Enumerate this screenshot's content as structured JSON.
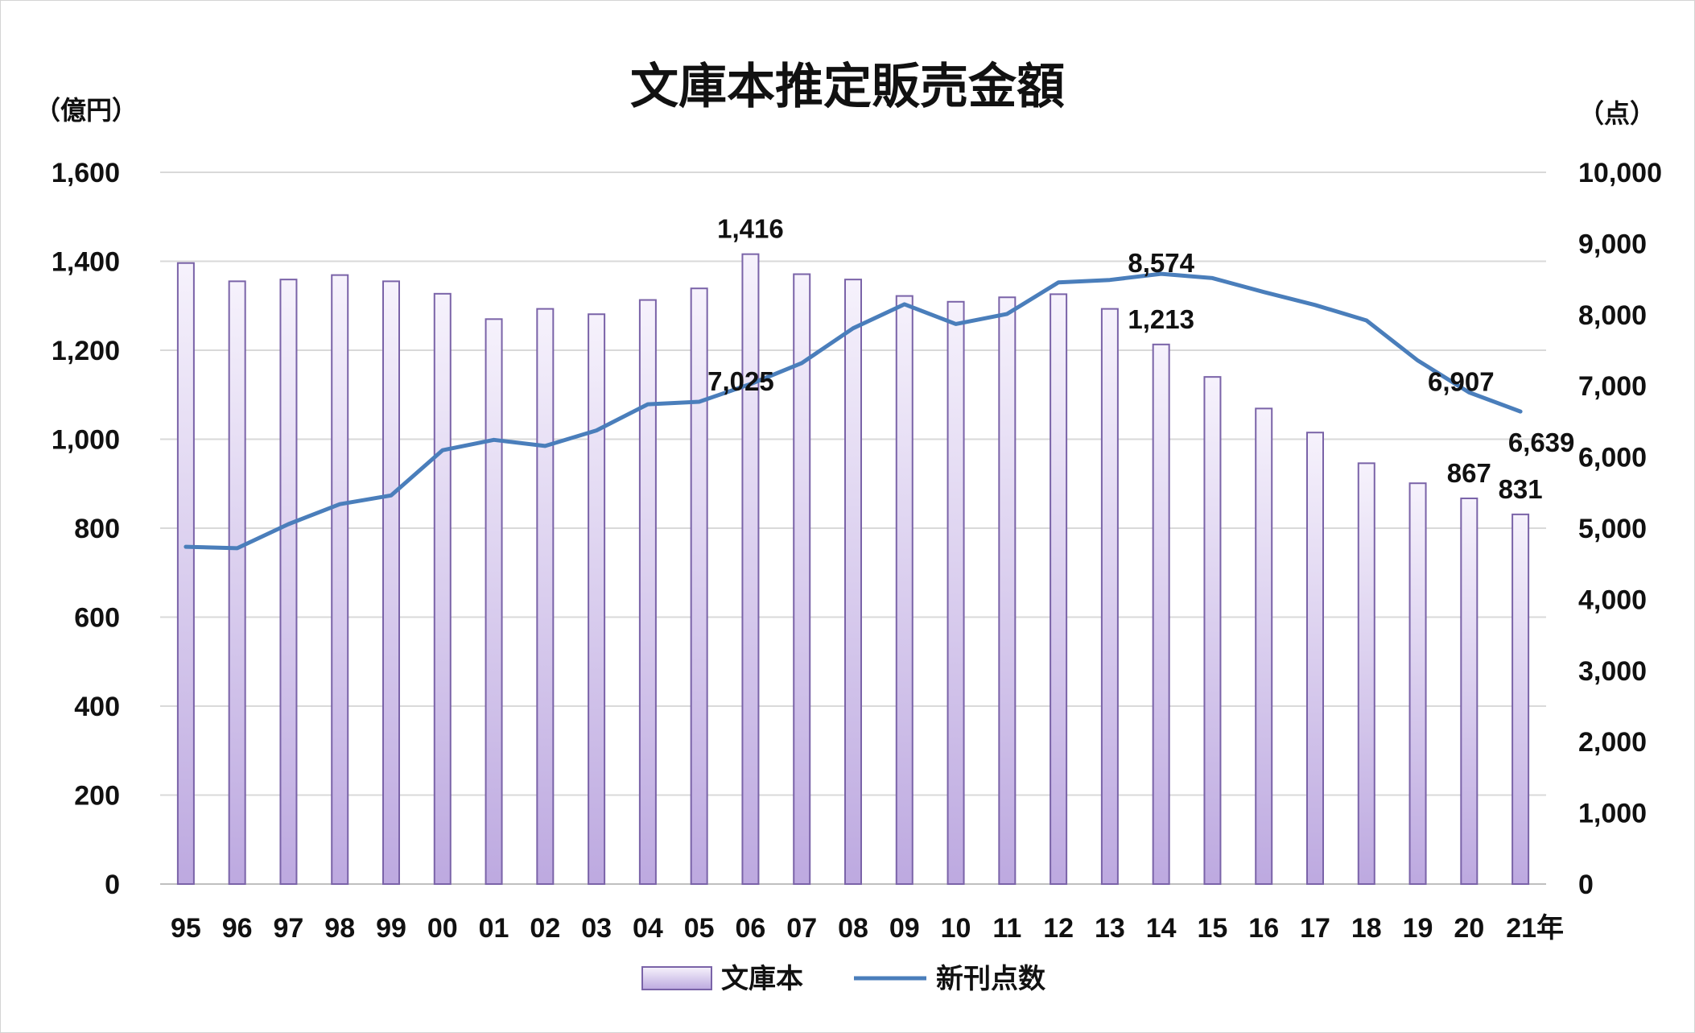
{
  "chart_data": {
    "type": "bar",
    "title": "文庫本推定販売金額",
    "y_left_unit": "（億円）",
    "y_right_unit": "（点）",
    "categories": [
      "95",
      "96",
      "97",
      "98",
      "99",
      "00",
      "01",
      "02",
      "03",
      "04",
      "05",
      "06",
      "07",
      "08",
      "09",
      "10",
      "11",
      "12",
      "13",
      "14",
      "15",
      "16",
      "17",
      "18",
      "19",
      "20",
      "21年"
    ],
    "ylim_left": [
      0,
      1600
    ],
    "ylim_right": [
      0,
      10000
    ],
    "left_ticks": [
      "0",
      "200",
      "400",
      "600",
      "800",
      "1,000",
      "1,200",
      "1,400",
      "1,600"
    ],
    "right_ticks": [
      "0",
      "1,000",
      "2,000",
      "3,000",
      "4,000",
      "5,000",
      "6,000",
      "7,000",
      "8,000",
      "9,000",
      "10,000"
    ],
    "grid": true,
    "legend_position": "bottom",
    "series": [
      {
        "name": "文庫本",
        "type": "bar",
        "axis": "left",
        "color": "#9b85c9",
        "values": [
          1396,
          1355,
          1359,
          1369,
          1355,
          1327,
          1270,
          1293,
          1281,
          1313,
          1339,
          1416,
          1371,
          1359,
          1322,
          1309,
          1319,
          1326,
          1293,
          1213,
          1140,
          1069,
          1015,
          946,
          901,
          867,
          831
        ]
      },
      {
        "name": "新刊点数",
        "type": "line",
        "axis": "right",
        "color": "#4a7ebb",
        "values": [
          4739,
          4718,
          5057,
          5337,
          5460,
          6095,
          6241,
          6155,
          6373,
          6741,
          6776,
          7025,
          7320,
          7809,
          8146,
          7869,
          8010,
          8452,
          8487,
          8574,
          8514,
          8318,
          8136,
          7919,
          7355,
          6907,
          6639
        ]
      }
    ],
    "data_labels": [
      {
        "series": "文庫本",
        "category": "06",
        "text": "1,416"
      },
      {
        "series": "文庫本",
        "category": "14",
        "text": "1,213"
      },
      {
        "series": "文庫本",
        "category": "20",
        "text": "867"
      },
      {
        "series": "文庫本",
        "category": "21年",
        "text": "831"
      },
      {
        "series": "新刊点数",
        "category": "06",
        "text": "7,025"
      },
      {
        "series": "新刊点数",
        "category": "14",
        "text": "8,574"
      },
      {
        "series": "新刊点数",
        "category": "20",
        "text": "6,907"
      },
      {
        "series": "新刊点数",
        "category": "21年",
        "text": "6,639"
      }
    ]
  }
}
